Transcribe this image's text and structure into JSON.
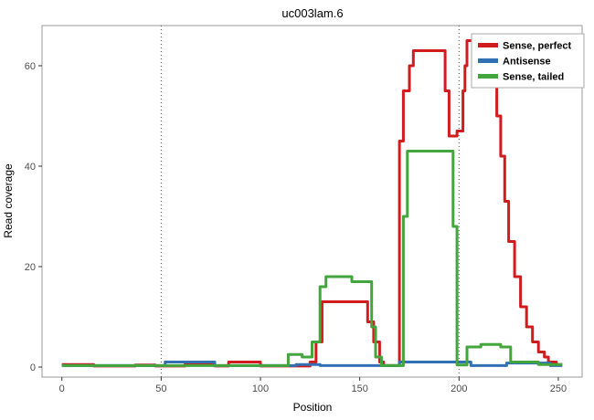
{
  "chart_data": {
    "type": "line",
    "title": "uc003lam.6",
    "xlabel": "Position",
    "ylabel": "Read coverage",
    "xlim": [
      -10,
      262
    ],
    "ylim": [
      -2,
      68
    ],
    "xticks": [
      0,
      50,
      100,
      150,
      200,
      250
    ],
    "yticks": [
      0,
      20,
      40,
      60
    ],
    "vlines": [
      50,
      200
    ],
    "grid": false,
    "legend_position": "top-right",
    "panel_border_color": "#999999",
    "vline_color": "#4d4d4d",
    "tick_color": "#333333",
    "tick_label_color": "#4d4d4d",
    "legend_border_color": "#aaaaaa",
    "line_width": 3,
    "series": [
      {
        "name": "Sense, perfect",
        "color": "#d01c1d",
        "points": [
          [
            0,
            0.5
          ],
          [
            16,
            0.5
          ],
          [
            16,
            0.2
          ],
          [
            37,
            0.2
          ],
          [
            37,
            0.4
          ],
          [
            47,
            0.4
          ],
          [
            47,
            0.2
          ],
          [
            62,
            0.2
          ],
          [
            62,
            0.5
          ],
          [
            77,
            0.5
          ],
          [
            77,
            0.2
          ],
          [
            84,
            0.2
          ],
          [
            84,
            1
          ],
          [
            100,
            1
          ],
          [
            100,
            0.2
          ],
          [
            125,
            0.2
          ],
          [
            125,
            1
          ],
          [
            128,
            1
          ],
          [
            128,
            5
          ],
          [
            131,
            5
          ],
          [
            131,
            13
          ],
          [
            154,
            13
          ],
          [
            154,
            9
          ],
          [
            157,
            9
          ],
          [
            157,
            5
          ],
          [
            160,
            5
          ],
          [
            160,
            1
          ],
          [
            162,
            1
          ],
          [
            162,
            0.3
          ],
          [
            170,
            0.3
          ],
          [
            170,
            45
          ],
          [
            172,
            45
          ],
          [
            172,
            55
          ],
          [
            175,
            55
          ],
          [
            175,
            60
          ],
          [
            177,
            60
          ],
          [
            177,
            63
          ],
          [
            193,
            63
          ],
          [
            193,
            55
          ],
          [
            195,
            55
          ],
          [
            195,
            46
          ],
          [
            199,
            46
          ],
          [
            199,
            47
          ],
          [
            202,
            47
          ],
          [
            202,
            55
          ],
          [
            203,
            55
          ],
          [
            203,
            60
          ],
          [
            204,
            60
          ],
          [
            204,
            65
          ],
          [
            215,
            65
          ],
          [
            215,
            62
          ],
          [
            217,
            62
          ],
          [
            217,
            56
          ],
          [
            219,
            56
          ],
          [
            219,
            50
          ],
          [
            221,
            50
          ],
          [
            221,
            42
          ],
          [
            223,
            42
          ],
          [
            223,
            33
          ],
          [
            225,
            33
          ],
          [
            225,
            25
          ],
          [
            228,
            25
          ],
          [
            228,
            18
          ],
          [
            231,
            18
          ],
          [
            231,
            12
          ],
          [
            234,
            12
          ],
          [
            234,
            8
          ],
          [
            237,
            8
          ],
          [
            237,
            5
          ],
          [
            240,
            5
          ],
          [
            240,
            3
          ],
          [
            243,
            3
          ],
          [
            243,
            2
          ],
          [
            245,
            2
          ],
          [
            245,
            1
          ],
          [
            249,
            1
          ],
          [
            249,
            0.5
          ],
          [
            252,
            0.5
          ]
        ]
      },
      {
        "name": "Antisense",
        "color": "#3070b3",
        "points": [
          [
            0,
            0.3
          ],
          [
            52,
            0.3
          ],
          [
            52,
            1
          ],
          [
            77,
            1
          ],
          [
            77,
            0.3
          ],
          [
            118,
            0.3
          ],
          [
            118,
            0.5
          ],
          [
            130,
            0.5
          ],
          [
            130,
            0.3
          ],
          [
            170,
            0.3
          ],
          [
            170,
            1
          ],
          [
            206,
            1
          ],
          [
            206,
            0.3
          ],
          [
            224,
            0.3
          ],
          [
            224,
            0.8
          ],
          [
            246,
            0.8
          ],
          [
            246,
            0.3
          ],
          [
            252,
            0.3
          ]
        ]
      },
      {
        "name": "Sense, tailed",
        "color": "#42a63c",
        "points": [
          [
            0,
            0.3
          ],
          [
            114,
            0.3
          ],
          [
            114,
            2.5
          ],
          [
            121,
            2.5
          ],
          [
            121,
            2
          ],
          [
            126,
            2
          ],
          [
            126,
            5
          ],
          [
            130,
            5
          ],
          [
            130,
            16
          ],
          [
            133,
            16
          ],
          [
            133,
            18
          ],
          [
            146,
            18
          ],
          [
            146,
            17
          ],
          [
            156,
            17
          ],
          [
            156,
            8
          ],
          [
            158,
            8
          ],
          [
            158,
            2
          ],
          [
            161,
            2
          ],
          [
            161,
            0.3
          ],
          [
            172,
            0.3
          ],
          [
            172,
            30
          ],
          [
            174,
            30
          ],
          [
            174,
            43
          ],
          [
            197,
            43
          ],
          [
            197,
            28
          ],
          [
            199,
            28
          ],
          [
            199,
            0.4
          ],
          [
            204,
            0.4
          ],
          [
            204,
            4
          ],
          [
            211,
            4
          ],
          [
            211,
            4.5
          ],
          [
            221,
            4.5
          ],
          [
            221,
            4
          ],
          [
            226,
            4
          ],
          [
            226,
            1
          ],
          [
            240,
            1
          ],
          [
            240,
            0.5
          ],
          [
            252,
            0.5
          ]
        ]
      }
    ]
  }
}
